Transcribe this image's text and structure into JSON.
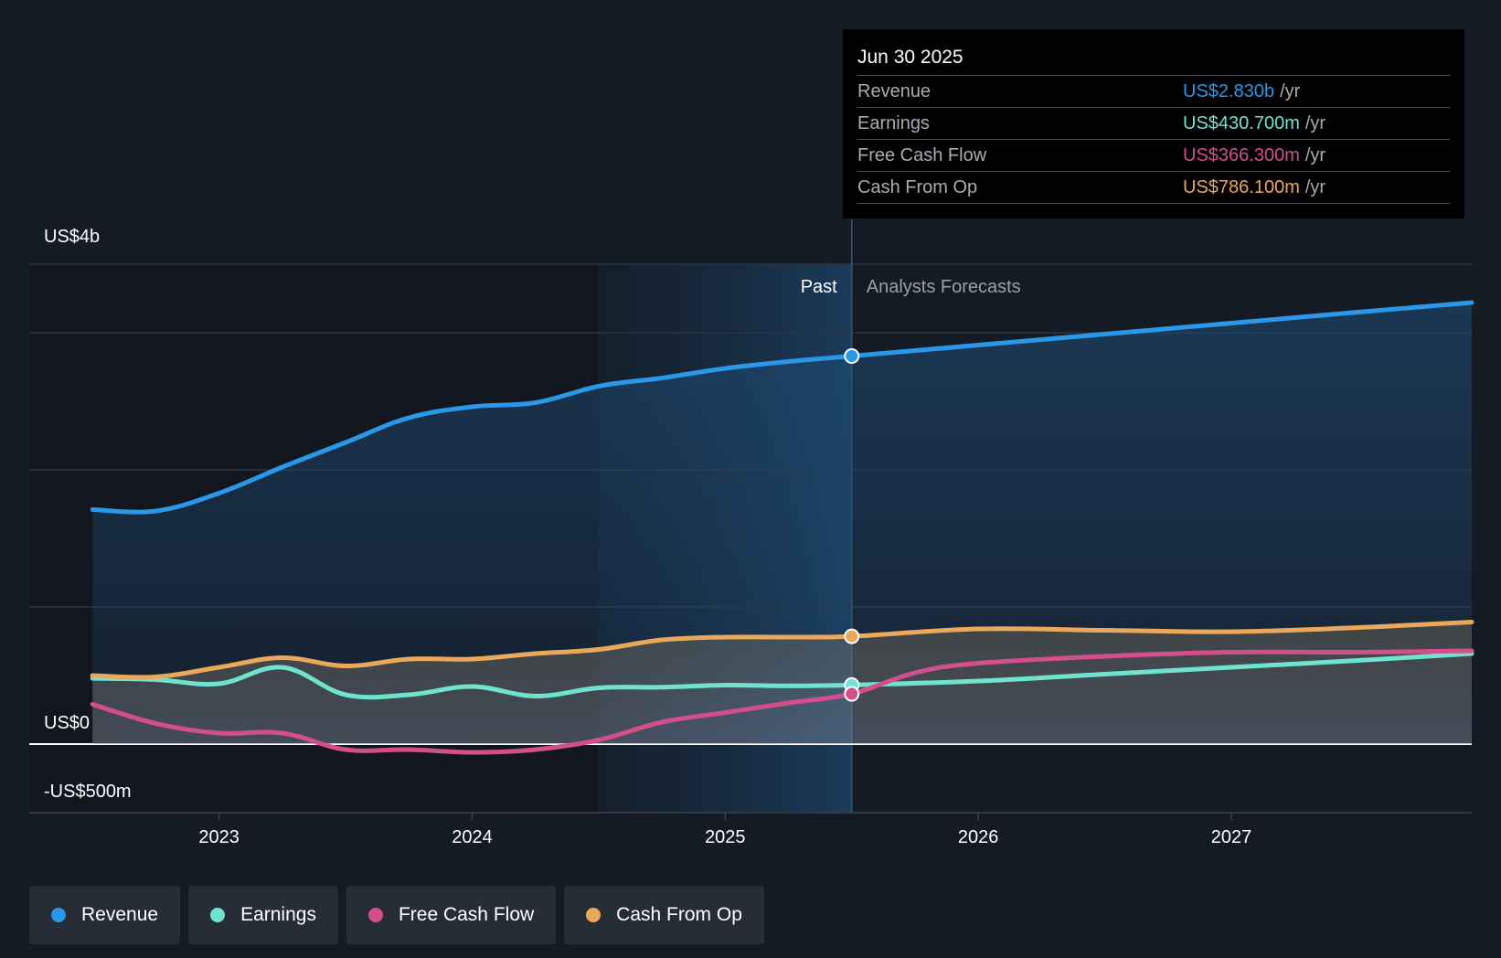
{
  "chart_data": {
    "type": "line",
    "y_labels": [
      "US$4b",
      "US$0",
      "-US$500m"
    ],
    "ylim": [
      -500,
      3500
    ],
    "x_ticks": [
      2023,
      2024,
      2025,
      2026,
      2027
    ],
    "x_tick_labels": [
      "2023",
      "2024",
      "2025",
      "2026",
      "2027"
    ],
    "xlim": [
      2022.25,
      2027.95
    ],
    "past_label": "Past",
    "forecast_label": "Analysts Forecasts",
    "divider_x": 2025.5,
    "shade_start_x": 2024.5,
    "series": [
      {
        "name": "Revenue",
        "key": "revenue",
        "color": "#2a97e8",
        "points": [
          [
            2022.5,
            1710
          ],
          [
            2022.75,
            1700
          ],
          [
            2023.0,
            1830
          ],
          [
            2023.25,
            2020
          ],
          [
            2023.5,
            2200
          ],
          [
            2023.75,
            2380
          ],
          [
            2024.0,
            2460
          ],
          [
            2024.25,
            2490
          ],
          [
            2024.5,
            2610
          ],
          [
            2024.75,
            2670
          ],
          [
            2025.0,
            2740
          ],
          [
            2025.25,
            2790
          ],
          [
            2025.5,
            2830
          ],
          [
            2026.0,
            2910
          ],
          [
            2026.5,
            2990
          ],
          [
            2027.0,
            3070
          ],
          [
            2027.5,
            3150
          ],
          [
            2027.95,
            3220
          ]
        ]
      },
      {
        "name": "Earnings",
        "key": "earnings",
        "color": "#6fe3cf",
        "points": [
          [
            2022.5,
            480
          ],
          [
            2022.75,
            470
          ],
          [
            2023.0,
            440
          ],
          [
            2023.25,
            560
          ],
          [
            2023.5,
            360
          ],
          [
            2023.75,
            360
          ],
          [
            2024.0,
            420
          ],
          [
            2024.25,
            350
          ],
          [
            2024.5,
            410
          ],
          [
            2024.75,
            415
          ],
          [
            2025.0,
            430
          ],
          [
            2025.25,
            425
          ],
          [
            2025.5,
            430.7
          ],
          [
            2026.0,
            460
          ],
          [
            2026.5,
            510
          ],
          [
            2027.0,
            560
          ],
          [
            2027.5,
            610
          ],
          [
            2027.95,
            660
          ]
        ]
      },
      {
        "name": "Free Cash Flow",
        "key": "fcf",
        "color": "#d24f8c",
        "points": [
          [
            2022.5,
            290
          ],
          [
            2022.75,
            150
          ],
          [
            2023.0,
            80
          ],
          [
            2023.25,
            80
          ],
          [
            2023.5,
            -40
          ],
          [
            2023.75,
            -40
          ],
          [
            2024.0,
            -60
          ],
          [
            2024.25,
            -40
          ],
          [
            2024.5,
            30
          ],
          [
            2024.75,
            160
          ],
          [
            2025.0,
            230
          ],
          [
            2025.25,
            300
          ],
          [
            2025.5,
            366.3
          ],
          [
            2025.75,
            520
          ],
          [
            2026.0,
            590
          ],
          [
            2026.5,
            640
          ],
          [
            2027.0,
            670
          ],
          [
            2027.5,
            670
          ],
          [
            2027.95,
            680
          ]
        ]
      },
      {
        "name": "Cash From Op",
        "key": "cfo",
        "color": "#eaa85b",
        "points": [
          [
            2022.5,
            500
          ],
          [
            2022.75,
            490
          ],
          [
            2023.0,
            560
          ],
          [
            2023.25,
            630
          ],
          [
            2023.5,
            570
          ],
          [
            2023.75,
            620
          ],
          [
            2024.0,
            620
          ],
          [
            2024.25,
            660
          ],
          [
            2024.5,
            690
          ],
          [
            2024.75,
            760
          ],
          [
            2025.0,
            780
          ],
          [
            2025.25,
            780
          ],
          [
            2025.5,
            786.1
          ],
          [
            2026.0,
            840
          ],
          [
            2026.5,
            830
          ],
          [
            2027.0,
            820
          ],
          [
            2027.5,
            850
          ],
          [
            2027.95,
            890
          ]
        ]
      }
    ]
  },
  "tooltip": {
    "date": "Jun 30 2025",
    "unit": "/yr",
    "rows": [
      {
        "label": "Revenue",
        "value": "US$2.830b",
        "color": "#2a97e8"
      },
      {
        "label": "Earnings",
        "value": "US$430.700m",
        "color": "#6fe3cf"
      },
      {
        "label": "Free Cash Flow",
        "value": "US$366.300m",
        "color": "#d24f8c"
      },
      {
        "label": "Cash From Op",
        "value": "US$786.100m",
        "color": "#eaa85b"
      }
    ]
  },
  "legend": [
    {
      "label": "Revenue",
      "color": "#2a97e8"
    },
    {
      "label": "Earnings",
      "color": "#6fe3cf"
    },
    {
      "label": "Free Cash Flow",
      "color": "#d24f8c"
    },
    {
      "label": "Cash From Op",
      "color": "#eaa85b"
    }
  ]
}
